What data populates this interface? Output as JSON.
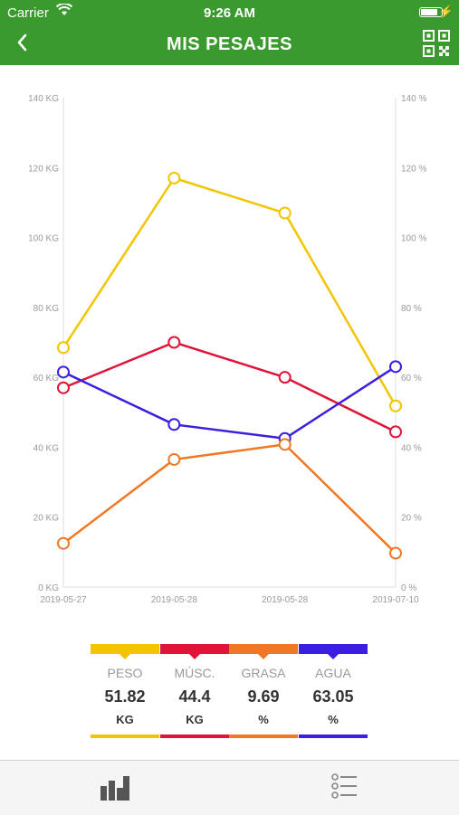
{
  "status_bar": {
    "carrier": "Carrier",
    "time": "9:26 AM"
  },
  "nav": {
    "title": "MIS PESAJES",
    "back_icon": "chevron-left-icon",
    "qr_icon": "qr-code-icon"
  },
  "colors": {
    "accent": "#3b9a2e",
    "peso": "#f2c500",
    "musc": "#e01438",
    "grasa": "#f07823",
    "agua": "#3a1fe0"
  },
  "chart_data": {
    "type": "line",
    "categories": [
      "2019-05-27",
      "2019-05-28",
      "2019-05-28",
      "2019-07-10"
    ],
    "y_left": {
      "unit": "KG",
      "ylim": [
        0,
        140
      ],
      "ticks": [
        "0 KG",
        "20 KG",
        "40 KG",
        "60 KG",
        "80 KG",
        "100 KG",
        "120 KG",
        "140 KG"
      ]
    },
    "y_right": {
      "unit": "%",
      "ylim": [
        0,
        140
      ],
      "ticks": [
        "0 %",
        "20 %",
        "40 %",
        "60 %",
        "80 %",
        "100 %",
        "120 %",
        "140 %"
      ]
    },
    "series": [
      {
        "key": "peso",
        "color": "#f2c500",
        "values": [
          68.5,
          117,
          107,
          51.82
        ]
      },
      {
        "key": "musc",
        "color": "#e01438",
        "values": [
          57,
          70,
          60,
          44.4
        ]
      },
      {
        "key": "agua",
        "color": "#3a1fe0",
        "values": [
          61.5,
          46.5,
          42.5,
          63.05
        ]
      },
      {
        "key": "grasa",
        "color": "#f07823",
        "values": [
          12.5,
          36.5,
          40.8,
          9.69
        ]
      }
    ],
    "grid": false,
    "legend": "bottom"
  },
  "legend": [
    {
      "key": "peso",
      "label": "PESO",
      "value": "51.82",
      "unit": "KG",
      "color": "#f2c500"
    },
    {
      "key": "musc",
      "label": "MÚSC.",
      "value": "44.4",
      "unit": "KG",
      "color": "#e01438"
    },
    {
      "key": "grasa",
      "label": "GRASA",
      "value": "9.69",
      "unit": "%",
      "color": "#f07823"
    },
    {
      "key": "agua",
      "label": "AGUA",
      "value": "63.05",
      "unit": "%",
      "color": "#3a1fe0"
    }
  ],
  "tabbar": {
    "left_icon": "bar-chart-icon",
    "right_icon": "list-icon"
  }
}
